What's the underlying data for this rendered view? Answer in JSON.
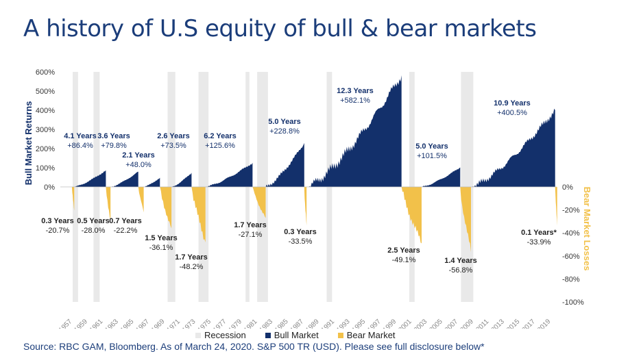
{
  "title": "A history of U.S equity of bull & bear markets",
  "source": "Source: RBC GAM, Bloomberg. As of March 24, 2020. S&P 500 TR (USD). Please see full disclosure below*",
  "colors": {
    "bull": "#13306b",
    "bear": "#f2c14a",
    "recession": "#e9e9e9",
    "title": "#1b3d7a",
    "axis_left": "#13306b",
    "axis_right": "#f2c14a"
  },
  "chart_data": {
    "type": "area",
    "ylabel": "Bull Market Returns",
    "ylabel_right": "Bear Market Losses",
    "ylim": [
      0,
      600
    ],
    "ylim_right": [
      -100,
      0
    ],
    "left_ticks": [
      "600%",
      "500%",
      "400%",
      "300%",
      "200%",
      "100%",
      "0%"
    ],
    "right_ticks": [
      "0%",
      "-20%",
      "-40%",
      "-60%",
      "-80%",
      "-100%"
    ],
    "x_ticks": [
      "1957",
      "1959",
      "1961",
      "1963",
      "1965",
      "1967",
      "1969",
      "1971",
      "1973",
      "1975",
      "1977",
      "1979",
      "1981",
      "1983",
      "1985",
      "1987",
      "1989",
      "1991",
      "1993",
      "1995",
      "1997",
      "1999",
      "2001",
      "2003",
      "2005",
      "2007",
      "2009",
      "2011",
      "2013",
      "2015",
      "2017",
      "2019"
    ],
    "legend": [
      "Recession",
      "Bull Market",
      "Bear Market"
    ],
    "recessions": [
      [
        1957.6,
        1958.3
      ],
      [
        1960.3,
        1961.1
      ],
      [
        1969.9,
        1970.9
      ],
      [
        1973.9,
        1975.2
      ],
      [
        1980.0,
        1980.5
      ],
      [
        1981.5,
        1982.9
      ],
      [
        1990.5,
        1991.2
      ],
      [
        2001.2,
        2001.9
      ],
      [
        2007.9,
        2009.5
      ]
    ],
    "bull_markets": [
      {
        "label": "4.1 Years",
        "value": "+86.4%",
        "start": 1957.8,
        "end": 1961.9,
        "return": 86.4
      },
      {
        "label": "3.6 Years",
        "value": "+79.8%",
        "start": 1962.5,
        "end": 1966.1,
        "return": 79.8
      },
      {
        "label": "2.1 Years",
        "value": "+48.0%",
        "start": 1966.8,
        "end": 1968.9,
        "return": 48.0
      },
      {
        "label": "2.6 Years",
        "value": "+73.5%",
        "start": 1970.4,
        "end": 1973.0,
        "return": 73.5
      },
      {
        "label": "6.2 Years",
        "value": "+125.6%",
        "start": 1974.8,
        "end": 1980.9,
        "return": 125.6
      },
      {
        "label": "5.0 Years",
        "value": "+228.8%",
        "start": 1982.6,
        "end": 1987.6,
        "return": 228.8
      },
      {
        "label": "12.3 Years",
        "value": "+582.1%",
        "start": 1987.9,
        "end": 2000.2,
        "return": 582.1
      },
      {
        "label": "5.0 Years",
        "value": "+101.5%",
        "start": 2002.8,
        "end": 2007.8,
        "return": 101.5
      },
      {
        "label": "10.9 Years",
        "value": "+400.5%",
        "start": 2009.2,
        "end": 2020.1,
        "return": 400.5
      }
    ],
    "bear_markets": [
      {
        "label": "0.3 Years",
        "value": "-20.7%",
        "start": 1957.5,
        "end": 1957.8,
        "loss": -20.7
      },
      {
        "label": "0.5 Years",
        "value": "-28.0%",
        "start": 1961.9,
        "end": 1962.5,
        "loss": -28.0
      },
      {
        "label": "0.7 Years",
        "value": "-22.2%",
        "start": 1966.1,
        "end": 1966.8,
        "loss": -22.2
      },
      {
        "label": "1.5 Years",
        "value": "-36.1%",
        "start": 1968.9,
        "end": 1970.4,
        "loss": -36.1
      },
      {
        "label": "1.7 Years",
        "value": "-48.2%",
        "start": 1973.0,
        "end": 1974.8,
        "loss": -48.2
      },
      {
        "label": "1.7 Years",
        "value": "-27.1%",
        "start": 1980.9,
        "end": 1982.6,
        "loss": -27.1
      },
      {
        "label": "0.3 Years",
        "value": "-33.5%",
        "start": 1987.6,
        "end": 1987.9,
        "loss": -33.5
      },
      {
        "label": "2.5 Years",
        "value": "-49.1%",
        "start": 2000.2,
        "end": 2002.8,
        "loss": -49.1
      },
      {
        "label": "1.4 Years",
        "value": "-56.8%",
        "start": 2007.8,
        "end": 2009.2,
        "loss": -56.8
      },
      {
        "label": "0.1 Years*",
        "value": "-33.9%",
        "start": 2020.1,
        "end": 2020.25,
        "loss": -33.9
      }
    ]
  }
}
